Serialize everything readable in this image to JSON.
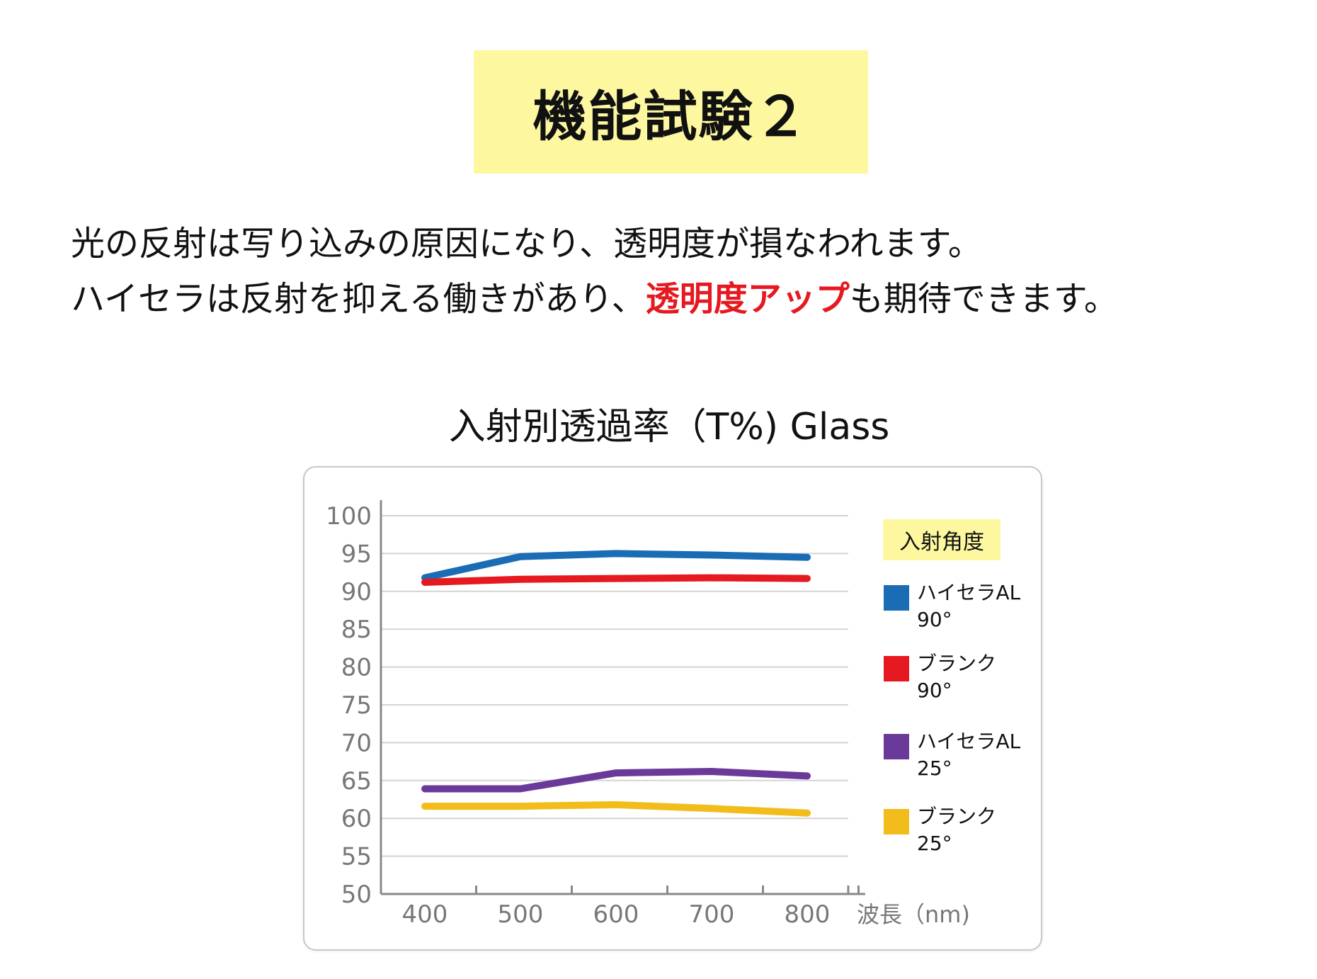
{
  "heading": "機能試験２",
  "description": {
    "line1": "光の反射は写り込みの原因になり、透明度が損なわれます。",
    "line2_before": "ハイセラは反射を抑える働きがあり、",
    "line2_highlight": "透明度アップ",
    "line2_after": "も期待できます。"
  },
  "colors": {
    "highlight": "#e5191f",
    "title_bg": "#fdf8a0"
  },
  "chart_data": {
    "type": "line",
    "title": "入射別透過率（T%) Glass",
    "xlabel": "波長（nm)",
    "ylabel": "",
    "x": [
      400,
      500,
      600,
      700,
      800
    ],
    "ylim": [
      50,
      100
    ],
    "yticks": [
      100,
      95,
      90,
      85,
      80,
      75,
      70,
      65,
      60,
      55,
      50
    ],
    "grid": true,
    "legend_title": "入射角度",
    "legend_position": "right",
    "series": [
      {
        "name": "ハイセラAL",
        "angle": "90°",
        "color": "#1a6db5",
        "values": [
          91.8,
          94.6,
          95.0,
          94.8,
          94.5
        ]
      },
      {
        "name": "ブランク",
        "angle": "90°",
        "color": "#e5191f",
        "values": [
          91.2,
          91.6,
          91.7,
          91.8,
          91.7
        ]
      },
      {
        "name": "ハイセラAL",
        "angle": "25°",
        "color": "#6a3a9a",
        "values": [
          63.9,
          63.9,
          66.0,
          66.2,
          65.6
        ]
      },
      {
        "name": "ブランク",
        "angle": "25°",
        "color": "#f2bd1c",
        "values": [
          61.6,
          61.6,
          61.8,
          61.3,
          60.7
        ]
      }
    ]
  }
}
